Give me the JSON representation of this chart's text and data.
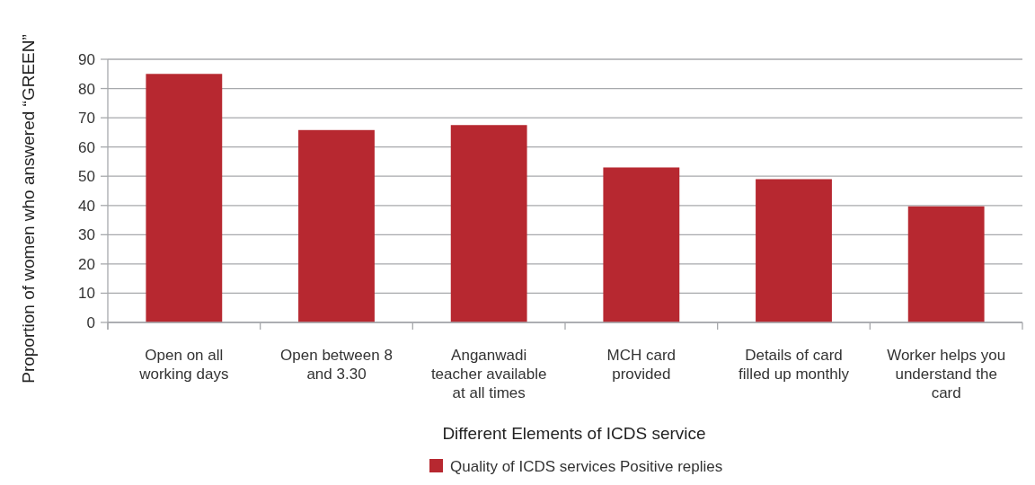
{
  "chart_data": {
    "type": "bar",
    "xlabel": "Different Elements of ICDS service",
    "ylabel": "Proportion of women who answered “GREEN”",
    "categories": [
      "Open on all working days",
      "Open between 8 and 3.30",
      "Anganwadi teacher available at all times",
      "MCH card provided",
      "Details of card filled up monthly",
      "Worker helps you understand the card"
    ],
    "series": [
      {
        "name": "Quality of ICDS services Positive replies",
        "color": "#b72830",
        "values": [
          85,
          65.8,
          67.5,
          53,
          49,
          39.7
        ]
      }
    ],
    "ylim": [
      0,
      90
    ],
    "yticks": [
      0,
      10,
      20,
      30,
      40,
      50,
      60,
      70,
      80,
      90
    ],
    "grid": "y",
    "legend": "bottom"
  }
}
